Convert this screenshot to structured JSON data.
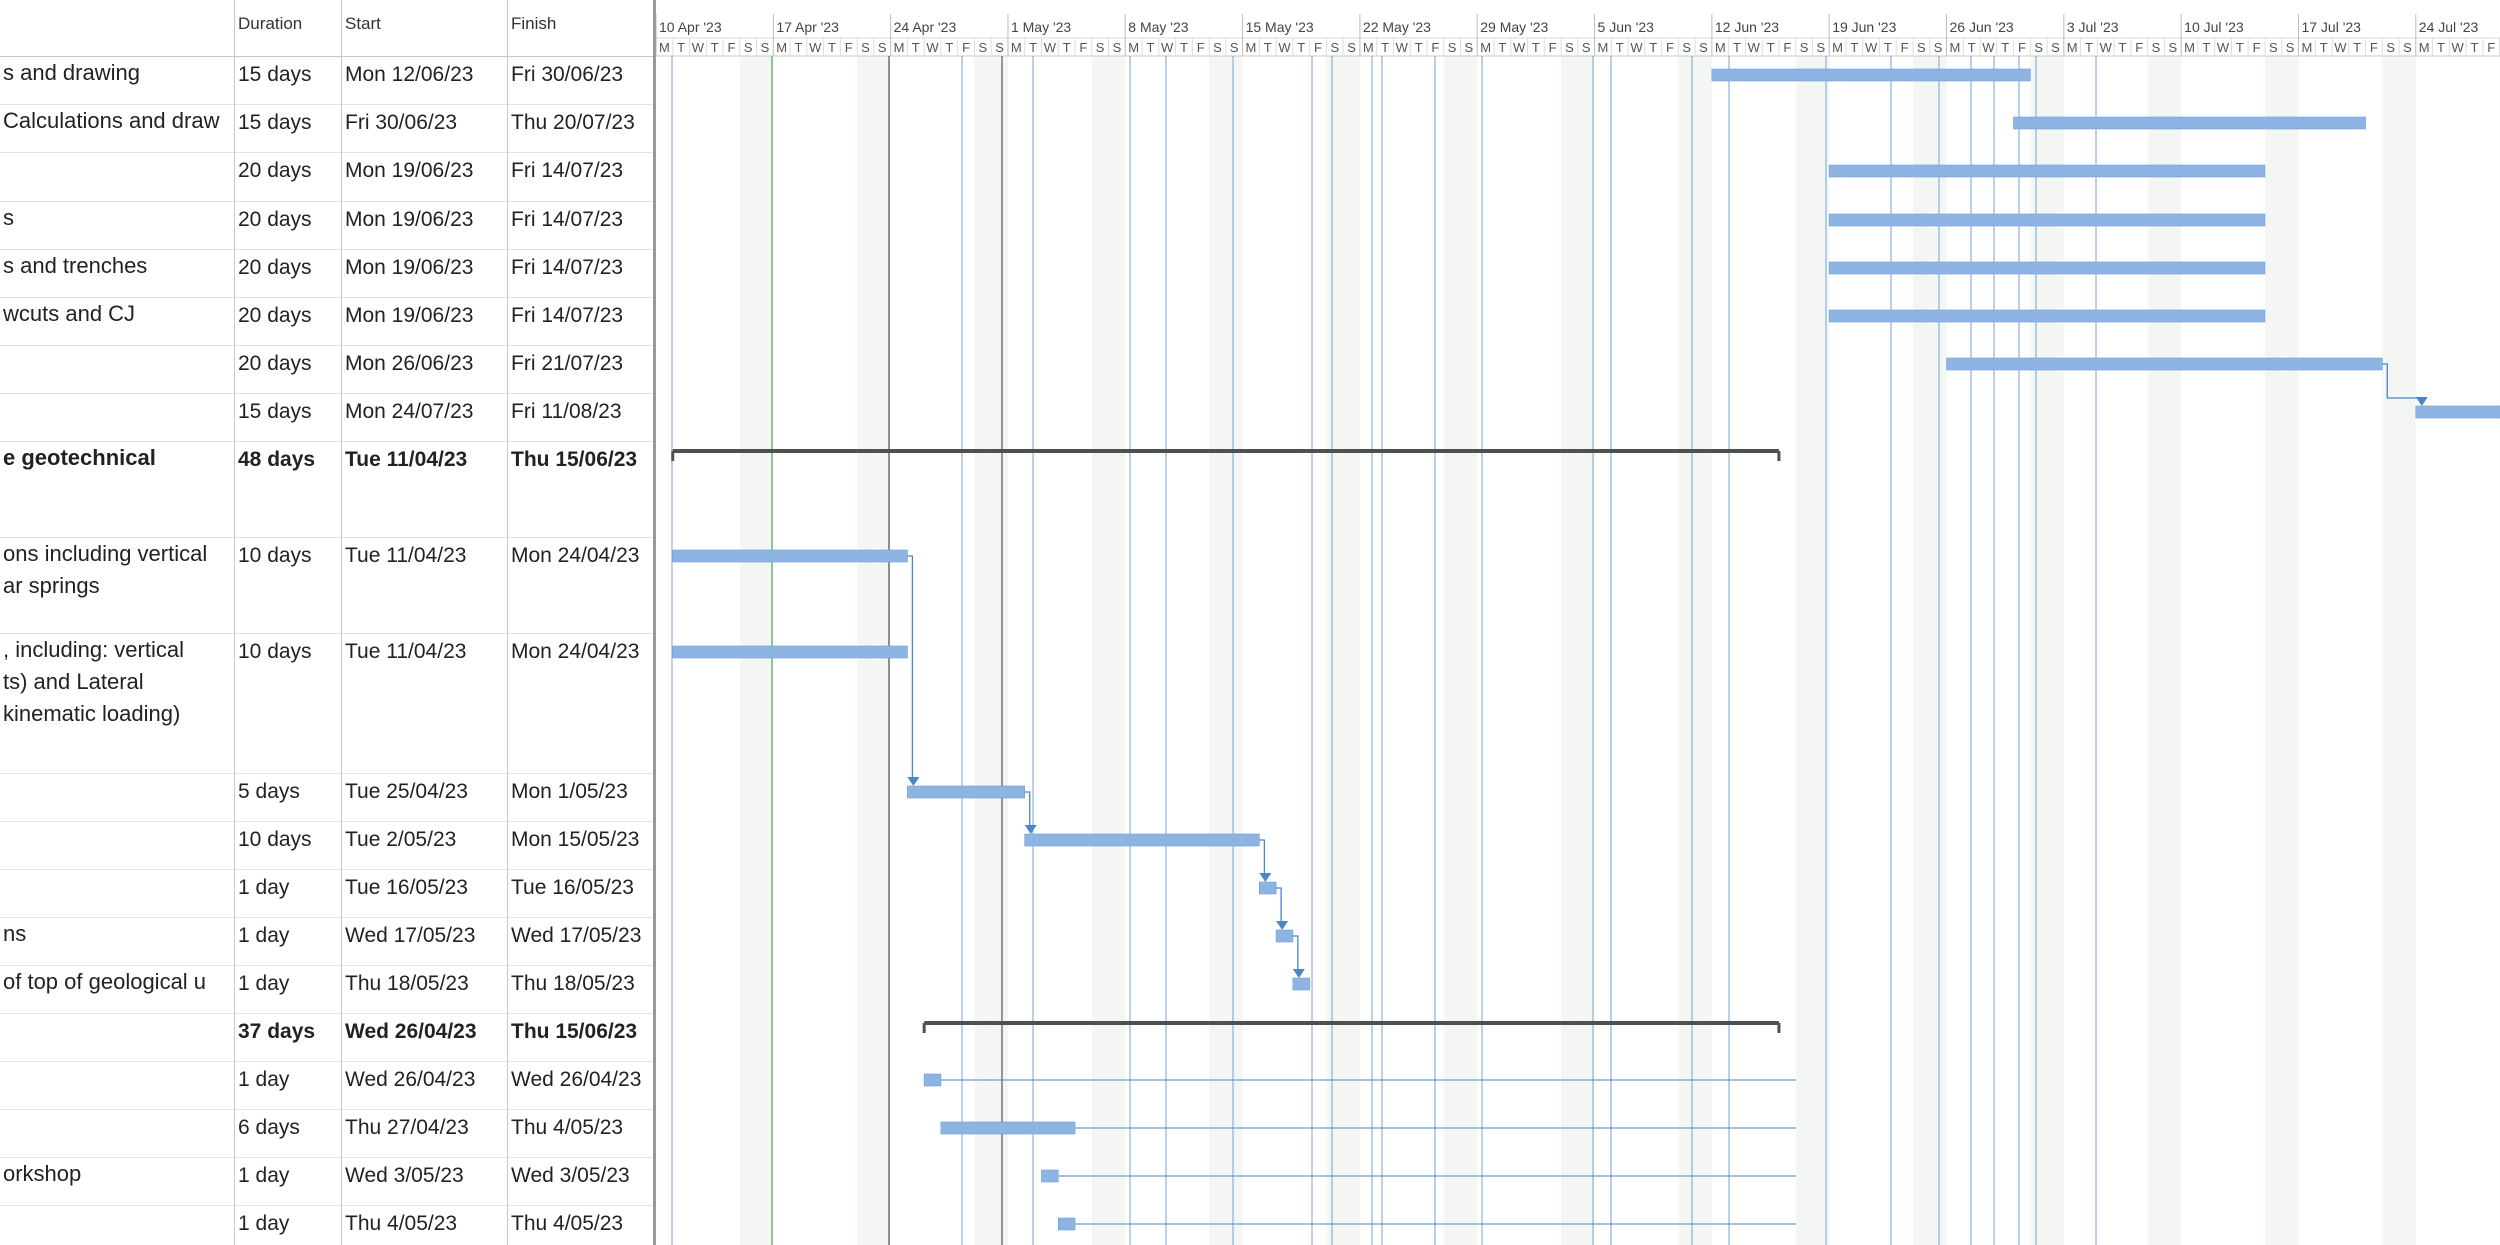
{
  "columns": {
    "name": "",
    "duration": "Duration",
    "start": "Start",
    "finish": "Finish"
  },
  "timescale": {
    "weeks": [
      "10 Apr '23",
      "17 Apr '23",
      "24 Apr '23",
      "1 May '23",
      "8 May '23",
      "15 May '23",
      "22 May '23",
      "29 May '23",
      "5 Jun '23",
      "12 Jun '23",
      "19 Jun '23",
      "26 Jun '23",
      "3 Jul '23",
      "10 Jul '23",
      "17 Jul '23",
      "24 Jul '23"
    ],
    "day_letters": [
      "M",
      "T",
      "W",
      "T",
      "F",
      "S",
      "S"
    ]
  },
  "tasks": [
    {
      "name": [
        "s and drawing"
      ],
      "duration": "15 days",
      "start": "Mon 12/06/23",
      "finish": "Fri 30/06/23",
      "summary": false
    },
    {
      "name": [
        "Calculations and draw"
      ],
      "duration": "15 days",
      "start": "Fri 30/06/23",
      "finish": "Thu 20/07/23",
      "summary": false
    },
    {
      "name": [
        ""
      ],
      "duration": "20 days",
      "start": "Mon 19/06/23",
      "finish": "Fri 14/07/23",
      "summary": false
    },
    {
      "name": [
        "s"
      ],
      "duration": "20 days",
      "start": "Mon 19/06/23",
      "finish": "Fri 14/07/23",
      "summary": false
    },
    {
      "name": [
        "s and trenches"
      ],
      "duration": "20 days",
      "start": "Mon 19/06/23",
      "finish": "Fri 14/07/23",
      "summary": false
    },
    {
      "name": [
        "wcuts and CJ"
      ],
      "duration": "20 days",
      "start": "Mon 19/06/23",
      "finish": "Fri 14/07/23",
      "summary": false
    },
    {
      "name": [
        ""
      ],
      "duration": "20 days",
      "start": "Mon 26/06/23",
      "finish": "Fri 21/07/23",
      "summary": false
    },
    {
      "name": [
        ""
      ],
      "duration": "15 days",
      "start": "Mon 24/07/23",
      "finish": "Fri 11/08/23",
      "summary": false
    },
    {
      "name": [
        "e geotechnical"
      ],
      "duration": "48 days",
      "start": "Tue 11/04/23",
      "finish": "Thu 15/06/23",
      "summary": true
    },
    {
      "name": [
        "ons including vertical",
        "ar springs"
      ],
      "duration": "10 days",
      "start": "Tue 11/04/23",
      "finish": "Mon 24/04/23",
      "summary": false
    },
    {
      "name": [
        ", including: vertical",
        "ts) and Lateral",
        "kinematic loading)"
      ],
      "duration": "10 days",
      "start": "Tue 11/04/23",
      "finish": "Mon 24/04/23",
      "summary": false
    },
    {
      "name": [
        ""
      ],
      "duration": "5 days",
      "start": "Tue 25/04/23",
      "finish": "Mon 1/05/23",
      "summary": false
    },
    {
      "name": [
        ""
      ],
      "duration": "10 days",
      "start": "Tue 2/05/23",
      "finish": "Mon 15/05/23",
      "summary": false
    },
    {
      "name": [
        ""
      ],
      "duration": "1 day",
      "start": "Tue 16/05/23",
      "finish": "Tue 16/05/23",
      "summary": false
    },
    {
      "name": [
        "ns"
      ],
      "duration": "1 day",
      "start": "Wed 17/05/23",
      "finish": "Wed 17/05/23",
      "summary": false
    },
    {
      "name": [
        "of top of geological u"
      ],
      "duration": "1 day",
      "start": "Thu 18/05/23",
      "finish": "Thu 18/05/23",
      "summary": false
    },
    {
      "name": [
        ""
      ],
      "duration": "37 days",
      "start": "Wed 26/04/23",
      "finish": "Thu 15/06/23",
      "summary": true
    },
    {
      "name": [
        ""
      ],
      "duration": "1 day",
      "start": "Wed 26/04/23",
      "finish": "Wed 26/04/23",
      "summary": false
    },
    {
      "name": [
        ""
      ],
      "duration": "6 days",
      "start": "Thu 27/04/23",
      "finish": "Thu 4/05/23",
      "summary": false
    },
    {
      "name": [
        "orkshop"
      ],
      "duration": "1 day",
      "start": "Wed 3/05/23",
      "finish": "Wed 3/05/23",
      "summary": false
    },
    {
      "name": [
        ""
      ],
      "duration": "1 day",
      "start": "Thu 4/05/23",
      "finish": "Thu 4/05/23",
      "summary": false
    }
  ],
  "colors": {
    "bar": "#8db4e2",
    "bar_border": "#6f9fd8",
    "link": "#4a86c8",
    "summary": "#505050",
    "weekend": "#f4f6f4",
    "gridline": "#6fa0d6",
    "current_date": "#6fbf73"
  }
}
